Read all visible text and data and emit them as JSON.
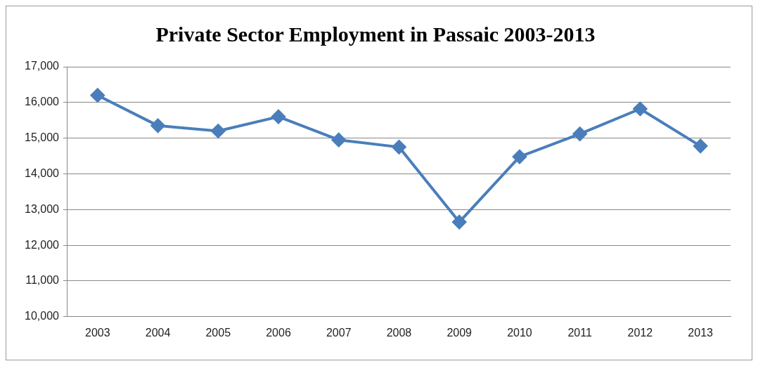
{
  "chart_data": {
    "type": "line",
    "title": "Private Sector Employment in Passaic 2003-2013",
    "categories": [
      "2003",
      "2004",
      "2005",
      "2006",
      "2007",
      "2008",
      "2009",
      "2010",
      "2011",
      "2012",
      "2013"
    ],
    "series": [
      {
        "color": "#4a7ebb",
        "values": [
          16200,
          15350,
          15200,
          15600,
          14950,
          14750,
          12650,
          14480,
          15120,
          15820,
          14780
        ]
      }
    ],
    "ylim": [
      10000,
      17000
    ],
    "yticks": [
      {
        "value": 10000,
        "label": "10,000"
      },
      {
        "value": 11000,
        "label": "11,000"
      },
      {
        "value": 12000,
        "label": "12,000"
      },
      {
        "value": 13000,
        "label": "13,000"
      },
      {
        "value": 14000,
        "label": "14,000"
      },
      {
        "value": 15000,
        "label": "15,000"
      },
      {
        "value": 16000,
        "label": "16,000"
      },
      {
        "value": 17000,
        "label": "17,000"
      }
    ],
    "grid": "y",
    "legend": false,
    "marker": "diamond",
    "line_style": "solid"
  }
}
